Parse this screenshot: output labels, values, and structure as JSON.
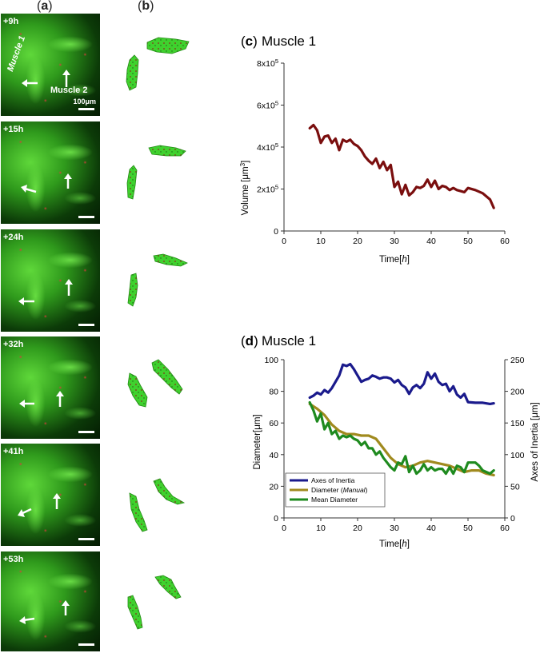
{
  "panel_a_label": "a",
  "panel_b_label": "b",
  "micrographs": [
    {
      "time": "+9h",
      "label_muscle1": "Muscle 1",
      "label_muscle2": "Muscle 2",
      "scale": "100μm"
    },
    {
      "time": "+15h"
    },
    {
      "time": "+24h"
    },
    {
      "time": "+32h"
    },
    {
      "time": "+41h"
    },
    {
      "time": "+53h"
    }
  ],
  "colors": {
    "volume": "#7a0e0e",
    "axes_inertia": "#1a1a8c",
    "diameter_manual": "#a08a1e",
    "mean_diameter": "#1e8a1e",
    "muscle_green": "#3fd12e"
  },
  "chart_data": [
    {
      "type": "line",
      "panel": "c",
      "title": "Muscle 1",
      "xlabel": "Time[h]",
      "ylabel": "Volume [μm3]",
      "xlim": [
        0,
        60
      ],
      "ylim": [
        0,
        800000
      ],
      "x_ticks": [
        "0",
        "10",
        "20",
        "30",
        "40",
        "50",
        "60"
      ],
      "y_ticks": [
        "0",
        "2x10⁵",
        "4x10⁵",
        "6x10⁵",
        "8x10⁵"
      ],
      "series": [
        {
          "color_key": "volume",
          "x": [
            7,
            8,
            9,
            10,
            11,
            12,
            13,
            14,
            15,
            16,
            17,
            18,
            19,
            20,
            21,
            22,
            23,
            24,
            25,
            26,
            27,
            28,
            29,
            30,
            31,
            32,
            33,
            34,
            35,
            36,
            37,
            38,
            39,
            40,
            41,
            42,
            43,
            44,
            45,
            46,
            47,
            48,
            49,
            50,
            52,
            54,
            56,
            57
          ],
          "y": [
            490000,
            505000,
            480000,
            420000,
            450000,
            455000,
            420000,
            440000,
            385000,
            435000,
            425000,
            435000,
            415000,
            405000,
            385000,
            355000,
            335000,
            320000,
            345000,
            300000,
            330000,
            290000,
            315000,
            210000,
            235000,
            175000,
            220000,
            170000,
            185000,
            210000,
            205000,
            215000,
            245000,
            210000,
            240000,
            200000,
            215000,
            210000,
            195000,
            205000,
            195000,
            190000,
            185000,
            205000,
            195000,
            180000,
            150000,
            110000
          ]
        }
      ]
    },
    {
      "type": "line",
      "panel": "d",
      "title": "Muscle 1",
      "xlabel": "Time[h]",
      "ylabel": "Diameter[μm]",
      "ylabel_right": "Axes of Inertia [μm]",
      "xlim": [
        0,
        60
      ],
      "ylim": [
        0,
        100
      ],
      "ylim_right": [
        0,
        250
      ],
      "x_ticks": [
        "0",
        "10",
        "20",
        "30",
        "40",
        "50",
        "60"
      ],
      "y_ticks": [
        "0",
        "20",
        "40",
        "60",
        "80",
        "100"
      ],
      "y_ticks_right": [
        "0",
        "50",
        "100",
        "150",
        "200",
        "250"
      ],
      "legend_position": "bottom-left",
      "series": [
        {
          "name": "Axes of Inertia",
          "axis": "right",
          "color_key": "axes_inertia",
          "x": [
            7,
            8,
            9,
            10,
            11,
            12,
            13,
            14,
            15,
            16,
            17,
            18,
            19,
            20,
            21,
            22,
            23,
            24,
            25,
            26,
            27,
            28,
            29,
            30,
            31,
            32,
            33,
            34,
            35,
            36,
            37,
            38,
            39,
            40,
            41,
            42,
            43,
            44,
            45,
            46,
            47,
            48,
            49,
            50,
            52,
            54,
            56,
            57
          ],
          "y": [
            190,
            193,
            198,
            195,
            202,
            198,
            205,
            215,
            225,
            242,
            240,
            243,
            235,
            225,
            215,
            218,
            220,
            225,
            223,
            220,
            222,
            222,
            220,
            214,
            218,
            210,
            206,
            196,
            206,
            210,
            205,
            212,
            230,
            220,
            228,
            215,
            210,
            212,
            200,
            208,
            195,
            190,
            196,
            183,
            182,
            182,
            180,
            181
          ]
        },
        {
          "name": "Diameter (Manual)",
          "axis": "left",
          "color_key": "diameter_manual",
          "x": [
            7,
            9,
            11,
            13,
            15,
            17,
            19,
            21,
            23,
            25,
            27,
            29,
            31,
            33,
            35,
            37,
            39,
            41,
            43,
            45,
            47,
            49,
            51,
            53,
            55,
            57
          ],
          "y": [
            72,
            69,
            65,
            59,
            55,
            53,
            53,
            52,
            52,
            50,
            44,
            38,
            34,
            32,
            33,
            35,
            36,
            35,
            34,
            33,
            31,
            29,
            30,
            30,
            28,
            27
          ]
        },
        {
          "name": "Mean Diameter",
          "axis": "left",
          "color_key": "mean_diameter",
          "x": [
            7,
            8,
            9,
            10,
            11,
            12,
            13,
            14,
            15,
            16,
            17,
            18,
            19,
            20,
            21,
            22,
            23,
            24,
            25,
            26,
            27,
            28,
            29,
            30,
            31,
            32,
            33,
            34,
            35,
            36,
            37,
            38,
            39,
            40,
            41,
            42,
            43,
            44,
            45,
            46,
            47,
            48,
            49,
            50,
            51,
            52,
            53,
            54,
            55,
            56,
            57
          ],
          "y": [
            73,
            68,
            61,
            66,
            56,
            60,
            53,
            55,
            50,
            52,
            51,
            52,
            50,
            49,
            46,
            48,
            44,
            44,
            40,
            42,
            38,
            35,
            32,
            30,
            35,
            34,
            39,
            29,
            33,
            28,
            30,
            34,
            30,
            32,
            30,
            31,
            31,
            28,
            32,
            28,
            33,
            32,
            29,
            35,
            35,
            35,
            33,
            30,
            29,
            28,
            30
          ]
        }
      ]
    }
  ]
}
